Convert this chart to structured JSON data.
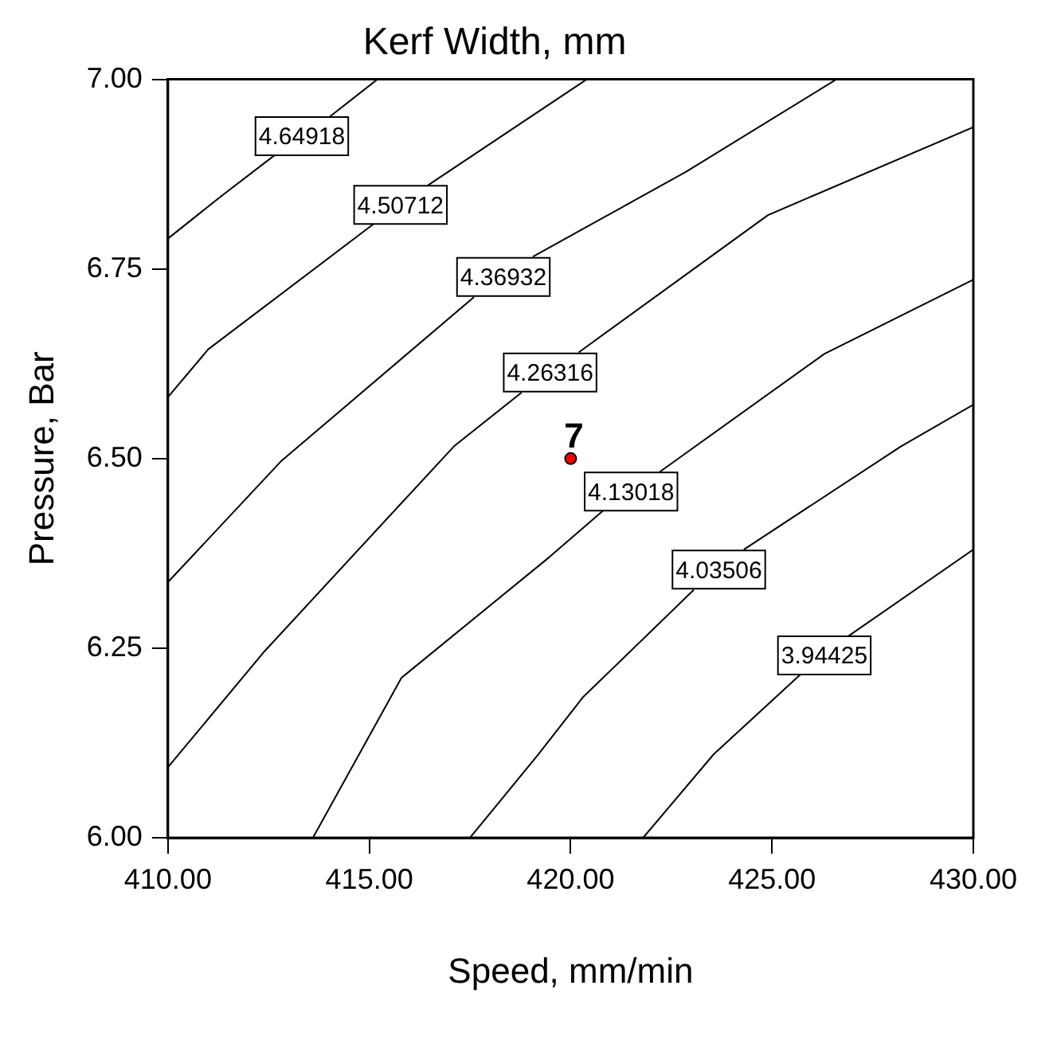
{
  "chart_data": {
    "type": "line",
    "title": "Kerf Width, mm",
    "xlabel": "Speed, mm/min",
    "ylabel": "Pressure, Bar",
    "xlim": [
      410,
      430
    ],
    "ylim": [
      6,
      7
    ],
    "xticks": [
      {
        "value": 410,
        "label": "410.00"
      },
      {
        "value": 415,
        "label": "415.00"
      },
      {
        "value": 420,
        "label": "420.00"
      },
      {
        "value": 425,
        "label": "425.00"
      },
      {
        "value": 430,
        "label": "430.00"
      }
    ],
    "yticks": [
      {
        "value": 6,
        "label": "6.00"
      },
      {
        "value": 6.25,
        "label": "6.25"
      },
      {
        "value": 6.5,
        "label": "6.50"
      },
      {
        "value": 6.75,
        "label": "6.75"
      },
      {
        "value": 7,
        "label": "7.00"
      }
    ],
    "grid": false,
    "legend": false,
    "marker": "none",
    "line_style": "solid",
    "series": [
      {
        "name": "4.64918",
        "color": "#000000",
        "x": [
          410,
          411.3,
          412.65,
          413.3,
          414,
          415.2
        ],
        "values": [
          6.79,
          6.845,
          6.9,
          null,
          6.95,
          7.0
        ]
      },
      {
        "name": "4.50712",
        "color": "#000000",
        "x": [
          410,
          411,
          415.1,
          415.78,
          416.45,
          420.4
        ],
        "values": [
          6.581,
          6.644,
          6.809,
          null,
          6.86,
          7.0
        ]
      },
      {
        "name": "4.36932",
        "color": "#000000",
        "x": [
          410,
          412.8,
          417.6,
          418.33,
          419.06,
          422.86,
          426.6
        ],
        "values": [
          6.337,
          6.496,
          6.713,
          null,
          6.766,
          6.878,
          7.0
        ]
      },
      {
        "name": "4.26316",
        "color": "#000000",
        "x": [
          410,
          412.4,
          417.1,
          418.78,
          419.49,
          420.2,
          424.9,
          430
        ],
        "values": [
          6.093,
          6.246,
          6.516,
          6.587,
          null,
          6.64,
          6.821,
          6.937
        ]
      },
      {
        "name": "4.13018",
        "color": "#000000",
        "x": [
          413.6,
          415.8,
          419.47,
          420.8,
          421.5,
          422.2,
          426.3,
          430
        ],
        "values": [
          6.0,
          6.211,
          6.37,
          6.431,
          null,
          6.482,
          6.638,
          6.736
        ]
      },
      {
        "name": "4.03506",
        "color": "#000000",
        "x": [
          417.5,
          419.2,
          420.3,
          423.06,
          423.68,
          424.3,
          428.2,
          430
        ],
        "values": [
          6.0,
          6.11,
          6.185,
          6.327,
          null,
          6.38,
          6.516,
          6.571
        ]
      },
      {
        "name": "3.94425",
        "color": "#000000",
        "x": [
          421.8,
          423.55,
          425.7,
          426.3,
          426.9,
          430
        ],
        "values": [
          6.0,
          6.11,
          6.215,
          null,
          6.266,
          6.38
        ]
      },
      {
        "type": "scatter",
        "marker": "circle",
        "color": "#ff0000",
        "x": [
          420
        ],
        "values": [
          6.5
        ],
        "value_labels": [
          "7"
        ]
      }
    ]
  }
}
